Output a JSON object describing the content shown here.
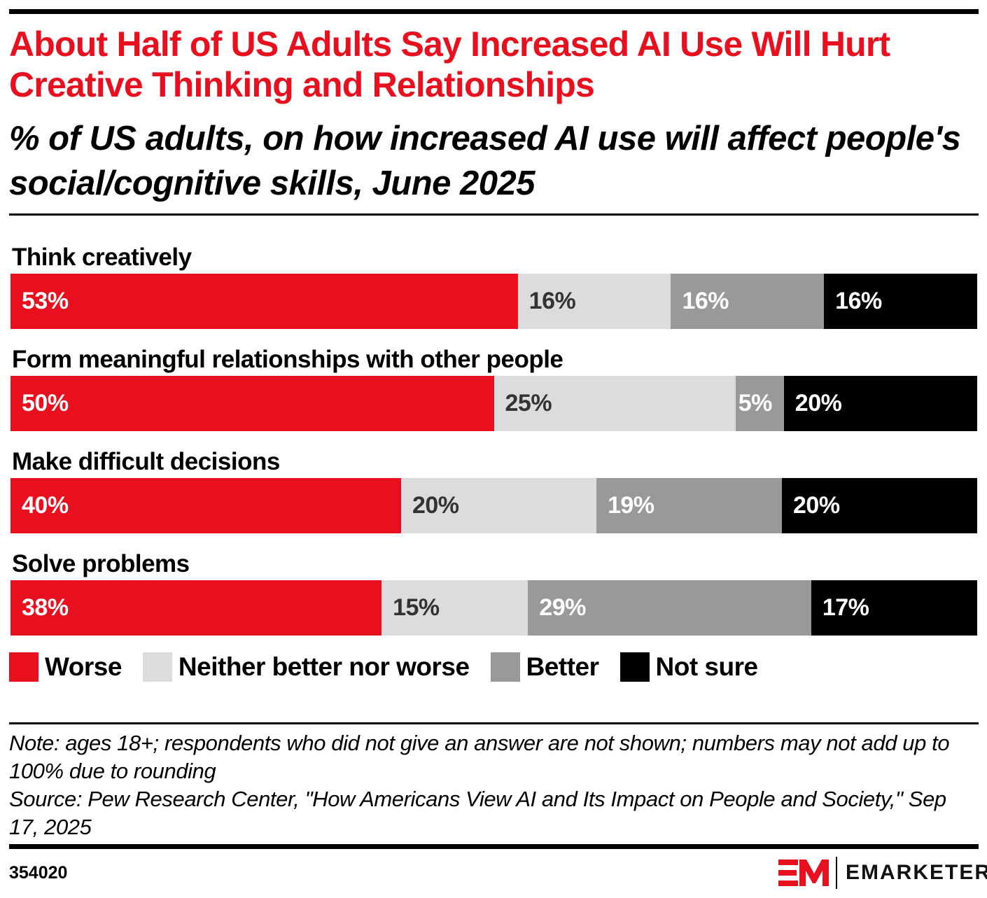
{
  "header": {
    "title": "About Half of US Adults Say Increased AI Use Will Hurt Creative Thinking and Relationships",
    "subtitle": "% of US adults, on how increased AI use will affect people's social/cognitive skills, June 2025"
  },
  "chart_data": {
    "type": "bar",
    "orientation": "horizontal",
    "stacked": true,
    "title": "About Half of US Adults Say Increased AI Use Will Hurt Creative Thinking and Relationships",
    "subtitle": "% of US adults, on how increased AI use will affect people's social/cognitive skills, June 2025",
    "categories": [
      "Think creatively",
      "Form meaningful relationships with other people",
      "Make difficult decisions",
      "Solve problems"
    ],
    "series": [
      {
        "name": "Worse",
        "color": "#e8101e",
        "label_color": "#ffffff",
        "values": [
          53,
          50,
          40,
          38
        ]
      },
      {
        "name": "Neither better nor worse",
        "color": "#dcdcdc",
        "label_color": "#333333",
        "values": [
          16,
          25,
          20,
          15
        ]
      },
      {
        "name": "Better",
        "color": "#999999",
        "label_color": "#ffffff",
        "values": [
          16,
          5,
          19,
          29
        ]
      },
      {
        "name": "Not sure",
        "color": "#000000",
        "label_color": "#ffffff",
        "values": [
          16,
          20,
          20,
          17
        ]
      }
    ],
    "value_suffix": "%",
    "xlabel": "",
    "ylabel": "",
    "xlim": [
      0,
      100
    ],
    "grid": false,
    "legend_position": "bottom-left"
  },
  "legend": [
    {
      "label": "Worse",
      "color": "#e8101e"
    },
    {
      "label": "Neither better nor worse",
      "color": "#dcdcdc"
    },
    {
      "label": "Better",
      "color": "#999999"
    },
    {
      "label": "Not sure",
      "color": "#000000"
    }
  ],
  "footer": {
    "note": "Note: ages 18+; respondents who did not give an answer are not shown; numbers may not add up to 100% due to rounding",
    "source": "Source: Pew Research Center, \"How Americans View AI and Its Impact on People and Society,\" Sep 17, 2025",
    "chart_id": "354020",
    "brand": "EMARKETER",
    "brand_color": "#e8101e"
  }
}
